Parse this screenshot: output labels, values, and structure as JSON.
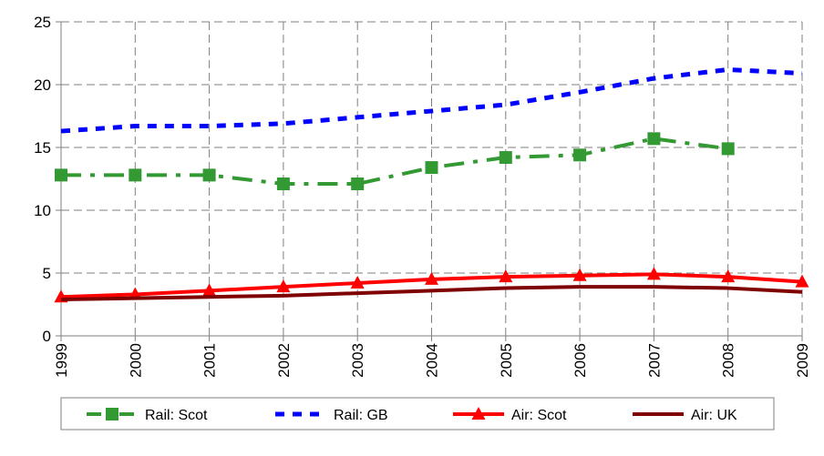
{
  "chart_data": {
    "type": "line",
    "title": "",
    "xlabel": "",
    "ylabel": "",
    "x": [
      "1999",
      "2000",
      "2001",
      "2002",
      "2003",
      "2004",
      "2005",
      "2006",
      "2007",
      "2008",
      "2009"
    ],
    "ylim": [
      0,
      25
    ],
    "yticks": [
      0,
      5,
      10,
      15,
      20,
      25
    ],
    "grid": true,
    "legend_position": "bottom",
    "series": [
      {
        "name": "Rail: Scot",
        "color": "#339933",
        "style": "dash-dot",
        "marker": "square",
        "values": [
          12.8,
          12.8,
          12.8,
          12.1,
          12.1,
          13.4,
          14.2,
          14.4,
          15.7,
          14.9,
          null
        ]
      },
      {
        "name": "Rail: GB",
        "color": "#0000ff",
        "style": "dotted",
        "marker": "none",
        "values": [
          16.3,
          16.7,
          16.7,
          16.9,
          17.4,
          17.9,
          18.4,
          19.4,
          20.5,
          21.2,
          20.9
        ]
      },
      {
        "name": "Air: Scot",
        "color": "#ff0000",
        "style": "solid",
        "marker": "triangle",
        "values": [
          3.1,
          3.3,
          3.6,
          3.9,
          4.2,
          4.5,
          4.7,
          4.8,
          4.9,
          4.7,
          4.3
        ]
      },
      {
        "name": "Air: UK",
        "color": "#7f0000",
        "style": "solid",
        "marker": "none",
        "values": [
          2.9,
          3.0,
          3.1,
          3.2,
          3.4,
          3.6,
          3.8,
          3.9,
          3.9,
          3.8,
          3.5
        ]
      }
    ]
  }
}
